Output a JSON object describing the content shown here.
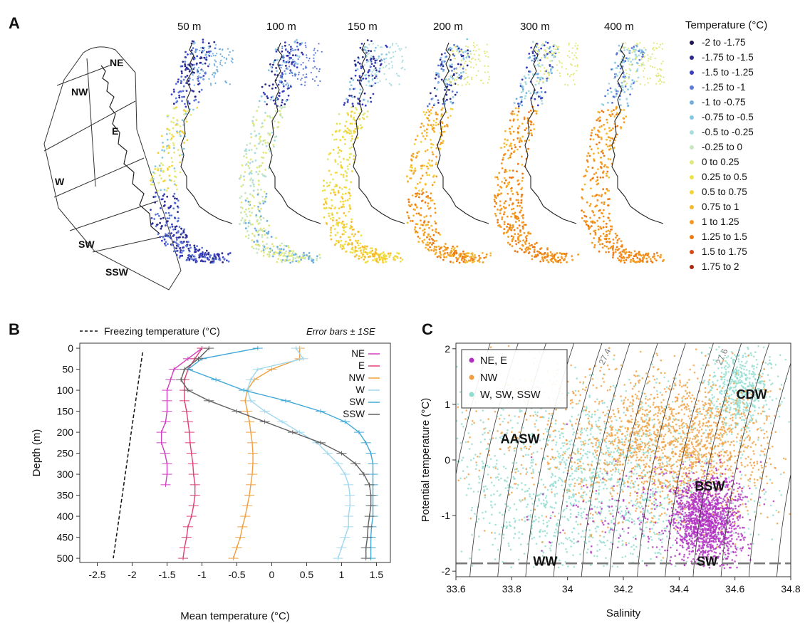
{
  "panel_a": {
    "letter": "A",
    "depth_labels": [
      "50 m",
      "100 m",
      "150 m",
      "200 m",
      "300 m",
      "400 m"
    ],
    "region_labels": [
      "NE",
      "NW",
      "E",
      "W",
      "SW",
      "SSW"
    ],
    "legend_title": "Temperature (°C)",
    "legend": [
      {
        "label": "-2 to -1.75",
        "color": "#1e1850"
      },
      {
        "label": "-1.75 to -1.5",
        "color": "#2a2a8a"
      },
      {
        "label": "-1.5 to -1.25",
        "color": "#3a3ec0"
      },
      {
        "label": "-1.25 to -1",
        "color": "#5b78d8"
      },
      {
        "label": "-1 to -0.75",
        "color": "#6fb0e0"
      },
      {
        "label": "-0.75 to -0.5",
        "color": "#86c8e4"
      },
      {
        "label": "-0.5 to -0.25",
        "color": "#a8dce0"
      },
      {
        "label": "-0.25 to 0",
        "color": "#c8e6c0"
      },
      {
        "label": "0 to 0.25",
        "color": "#e2e87a"
      },
      {
        "label": "0.25 to 0.5",
        "color": "#eee24a"
      },
      {
        "label": "0.5 to 0.75",
        "color": "#f4d43a"
      },
      {
        "label": "0.75 to 1",
        "color": "#f6b832"
      },
      {
        "label": "1 to 1.25",
        "color": "#f49a22"
      },
      {
        "label": "1.25 to 1.5",
        "color": "#ee7a14"
      },
      {
        "label": "1.5 to 1.75",
        "color": "#d84a12"
      },
      {
        "label": "1.75 to 2",
        "color": "#a82a10"
      }
    ],
    "map_palettes": [
      [
        "#2a2a8a",
        "#3a3ec0",
        "#5b78d8",
        "#86c8e4",
        "#e2e87a",
        "#f4d43a",
        "#f49a22",
        "#6fb0e0"
      ],
      [
        "#2a2a8a",
        "#3a3ec0",
        "#86c8e4",
        "#a8dce0",
        "#c8e6c0",
        "#e2e87a",
        "#6fb0e0",
        "#5b78d8"
      ],
      [
        "#2a2a8a",
        "#3a3ec0",
        "#86c8e4",
        "#e2e87a",
        "#eee24a",
        "#f4d43a",
        "#f6b832",
        "#a8dce0"
      ],
      [
        "#2a2a8a",
        "#5b78d8",
        "#86c8e4",
        "#f4d43a",
        "#f6b832",
        "#f49a22",
        "#ee7a14",
        "#e2e87a"
      ],
      [
        "#3a3ec0",
        "#6fb0e0",
        "#a8dce0",
        "#f6b832",
        "#f49a22",
        "#ee7a14",
        "#f49a22",
        "#e2e87a"
      ],
      [
        "#5b78d8",
        "#86c8e4",
        "#a8dce0",
        "#f6b832",
        "#f49a22",
        "#ee7a14",
        "#f49a22",
        "#e2e87a"
      ]
    ]
  },
  "panel_b": {
    "letter": "B",
    "freezing_legend": "Freezing temperature (°C)",
    "error_bars_note": "Error bars ± 1SE"
  },
  "panel_c": {
    "letter": "C"
  },
  "chart_data": [
    {
      "panel": "B",
      "type": "line",
      "xlabel": "Mean temperature (°C)",
      "ylabel": "Depth (m)",
      "xlim": [
        -2.75,
        1.7
      ],
      "ylim": [
        510,
        -12
      ],
      "xticks": [
        "-2.5",
        "-2",
        "-1.5",
        "-1",
        "-0.5",
        "0",
        "0.5",
        "1",
        "1.5"
      ],
      "yticks": [
        "0",
        "50",
        "100",
        "150",
        "200",
        "250",
        "300",
        "350",
        "400",
        "450",
        "500"
      ],
      "freezing_line": {
        "x": [
          -1.85,
          -2.27
        ],
        "y": [
          10,
          500
        ]
      },
      "series": [
        {
          "name": "NE",
          "color": "#d040c0",
          "depth": [
            0,
            25,
            50,
            75,
            100,
            125,
            150,
            175,
            200,
            225,
            250,
            275,
            300,
            325
          ],
          "temp": [
            -1.0,
            -1.2,
            -1.4,
            -1.45,
            -1.5,
            -1.5,
            -1.5,
            -1.52,
            -1.58,
            -1.58,
            -1.53,
            -1.5,
            -1.5,
            -1.52
          ]
        },
        {
          "name": "E",
          "color": "#e0407a",
          "depth": [
            0,
            25,
            50,
            75,
            100,
            125,
            150,
            175,
            200,
            225,
            250,
            275,
            300,
            325,
            350,
            375,
            400,
            425,
            450,
            475,
            500
          ],
          "temp": [
            -1.0,
            -1.1,
            -1.2,
            -1.25,
            -1.25,
            -1.25,
            -1.22,
            -1.2,
            -1.18,
            -1.17,
            -1.15,
            -1.13,
            -1.12,
            -1.1,
            -1.1,
            -1.12,
            -1.15,
            -1.2,
            -1.22,
            -1.25,
            -1.27
          ]
        },
        {
          "name": "NW",
          "color": "#f0a040",
          "depth": [
            0,
            25,
            50,
            75,
            100,
            125,
            150,
            175,
            200,
            225,
            250,
            275,
            300,
            325,
            350,
            375,
            400,
            425,
            450,
            475,
            500
          ],
          "temp": [
            0.4,
            0.4,
            0.0,
            -0.25,
            -0.35,
            -0.38,
            -0.35,
            -0.32,
            -0.3,
            -0.28,
            -0.27,
            -0.27,
            -0.28,
            -0.3,
            -0.32,
            -0.35,
            -0.38,
            -0.42,
            -0.45,
            -0.5,
            -0.55
          ]
        },
        {
          "name": "W",
          "color": "#a0d8f0",
          "depth": [
            0,
            25,
            50,
            75,
            100,
            125,
            150,
            175,
            200,
            225,
            250,
            275,
            300,
            325,
            350,
            375,
            400,
            425,
            450,
            475,
            500
          ],
          "temp": [
            0.35,
            0.45,
            -0.2,
            -0.3,
            -0.35,
            -0.3,
            -0.1,
            0.15,
            0.4,
            0.65,
            0.8,
            0.95,
            1.05,
            1.1,
            1.12,
            1.12,
            1.1,
            1.1,
            1.05,
            1.0,
            0.95
          ]
        },
        {
          "name": "SW",
          "color": "#40a8d8",
          "depth": [
            0,
            25,
            50,
            75,
            100,
            125,
            150,
            175,
            200,
            225,
            250,
            275,
            300,
            325,
            350,
            375,
            400,
            425,
            450,
            475,
            500
          ],
          "temp": [
            -0.2,
            -1.0,
            -1.2,
            -0.8,
            -0.4,
            0.2,
            0.7,
            1.05,
            1.25,
            1.35,
            1.42,
            1.45,
            1.45,
            1.45,
            1.45,
            1.45,
            1.45,
            1.43,
            1.42,
            1.42,
            1.42
          ]
        },
        {
          "name": "SSW",
          "color": "#606060",
          "depth": [
            0,
            25,
            50,
            75,
            100,
            125,
            150,
            175,
            200,
            225,
            250,
            275,
            300,
            325,
            350,
            375,
            400,
            425,
            450,
            475,
            500
          ],
          "temp": [
            -0.9,
            -1.05,
            -1.25,
            -1.3,
            -1.2,
            -0.9,
            -0.5,
            -0.1,
            0.3,
            0.7,
            1.0,
            1.2,
            1.32,
            1.4,
            1.42,
            1.42,
            1.4,
            1.38,
            1.37,
            1.35,
            1.35
          ]
        }
      ]
    },
    {
      "panel": "C",
      "type": "scatter",
      "xlabel": "Salinity",
      "ylabel": "Potential temperature (°C)",
      "xlim": [
        33.6,
        34.8
      ],
      "ylim": [
        -2.1,
        2.1
      ],
      "xticks": [
        "33.6",
        "33.8",
        "34",
        "34.2",
        "34.4",
        "34.6",
        "34.8"
      ],
      "yticks": [
        "2",
        "1",
        "0",
        "-1",
        "-2"
      ],
      "legend": [
        {
          "name": "NE, E",
          "color": "#b030c0"
        },
        {
          "name": "NW",
          "color": "#f0a040"
        },
        {
          "name": "W, SW, SSW",
          "color": "#90dcd0"
        }
      ],
      "density_isolines": [
        "27.4",
        "27.6"
      ],
      "freezing_temperature": -1.86,
      "water_masses": [
        {
          "label": "CDW",
          "s": 34.66,
          "t": 1.1
        },
        {
          "label": "AASW",
          "s": 33.83,
          "t": 0.3
        },
        {
          "label": "BSW",
          "s": 34.51,
          "t": -0.55
        },
        {
          "label": "WW",
          "s": 33.92,
          "t": -1.9
        },
        {
          "label": "SW",
          "s": 34.5,
          "t": -1.9
        }
      ],
      "clusters": [
        {
          "series": "W, SW, SSW",
          "count": 1600,
          "s_mean": 34.1,
          "s_sd": 0.28,
          "t_mean": -0.4,
          "t_sd": 0.85
        },
        {
          "series": "W, SW, SSW",
          "count": 500,
          "s_mean": 34.62,
          "s_sd": 0.06,
          "t_mean": 1.3,
          "t_sd": 0.35
        },
        {
          "series": "NW",
          "count": 1500,
          "s_mean": 34.4,
          "s_sd": 0.17,
          "t_mean": 0.3,
          "t_sd": 0.6
        },
        {
          "series": "NW",
          "count": 400,
          "s_mean": 34.0,
          "s_sd": 0.22,
          "t_mean": 0.5,
          "t_sd": 0.9
        },
        {
          "series": "NE, E",
          "count": 1300,
          "s_mean": 34.5,
          "s_sd": 0.06,
          "t_mean": -1.1,
          "t_sd": 0.4
        },
        {
          "series": "NE, E",
          "count": 200,
          "s_mean": 34.3,
          "s_sd": 0.18,
          "t_mean": -0.9,
          "t_sd": 0.5
        }
      ]
    }
  ]
}
